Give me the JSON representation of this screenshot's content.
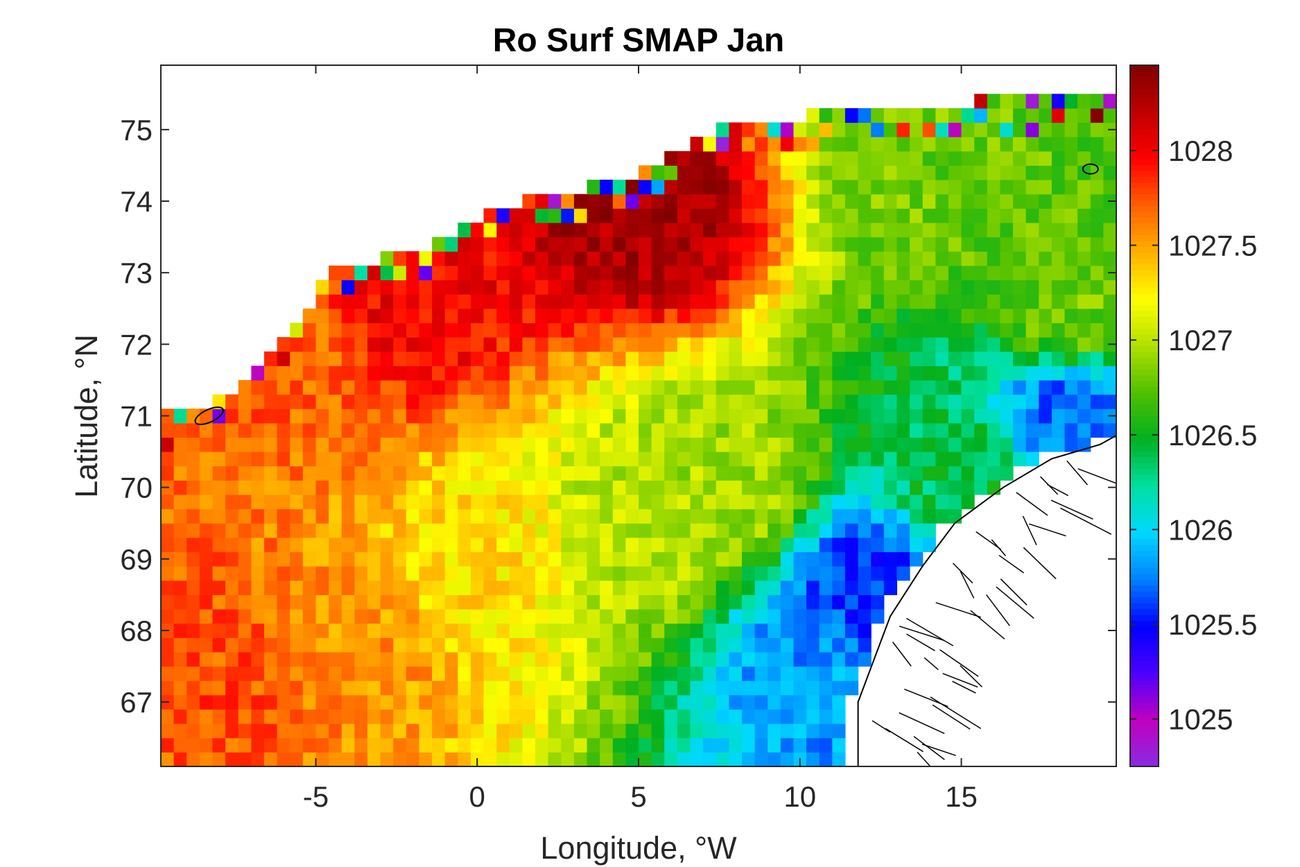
{
  "chart_data": {
    "type": "heatmap",
    "title": "Ro Surf SMAP Jan",
    "xlabel": "Longitude, °W",
    "ylabel": "Latitude, °N",
    "xlim": [
      -9.8,
      19.8
    ],
    "ylim": [
      66.1,
      75.9
    ],
    "xticks": [
      -5,
      0,
      5,
      10,
      15
    ],
    "xtick_labels": [
      "-5",
      "0",
      "5",
      "10",
      "15"
    ],
    "yticks": [
      67,
      68,
      69,
      70,
      71,
      72,
      73,
      74,
      75
    ],
    "ytick_labels": [
      "67",
      "68",
      "69",
      "70",
      "71",
      "72",
      "73",
      "74",
      "75"
    ],
    "grid": false,
    "colorbar": {
      "range": [
        1024.75,
        1028.45
      ],
      "ticks": [
        1025,
        1025.5,
        1026,
        1026.5,
        1027,
        1027.5,
        1028
      ],
      "tick_labels": [
        "1025",
        "1025.5",
        "1026",
        "1026.5",
        "1027",
        "1027.5",
        "1028"
      ],
      "colormap": [
        "#8a2be2",
        "#c000c0",
        "#4b00ff",
        "#0000ff",
        "#0080ff",
        "#00d8ff",
        "#00e0a0",
        "#00b020",
        "#50c000",
        "#b0e000",
        "#ffff00",
        "#ffb000",
        "#ff6000",
        "#ff0000",
        "#c00000",
        "#800000"
      ]
    },
    "grid_resolution": {
      "dlon": 0.4,
      "dlat": 0.2
    },
    "field_description": "Surface density (kg/m3) binned on a 0.4° x 0.2° grid; values decrease from ~1027.8 in the southwest to ~1025.5 along the Norwegian coast in the southeast; highest values (~1028.3) along the northwestern ice edge",
    "anchor_points": [
      {
        "lon": -8,
        "lat": 67.5,
        "value": 1027.75
      },
      {
        "lon": -4,
        "lat": 68.0,
        "value": 1027.55
      },
      {
        "lon": 0,
        "lat": 69.0,
        "value": 1027.3
      },
      {
        "lon": 5,
        "lat": 69.5,
        "value": 1027.0
      },
      {
        "lon": 8,
        "lat": 70.0,
        "value": 1026.95
      },
      {
        "lon": 10.5,
        "lat": 67.5,
        "value": 1025.8
      },
      {
        "lon": 12,
        "lat": 68.6,
        "value": 1025.6
      },
      {
        "lon": 15,
        "lat": 70.2,
        "value": 1026.4
      },
      {
        "lon": 18.5,
        "lat": 71.0,
        "value": 1025.7
      },
      {
        "lon": 18.5,
        "lat": 72.5,
        "value": 1026.8
      },
      {
        "lon": 14,
        "lat": 74.5,
        "value": 1026.8
      },
      {
        "lon": 5,
        "lat": 74.0,
        "value": 1028.3
      },
      {
        "lon": -2,
        "lat": 72.8,
        "value": 1028.0
      },
      {
        "lon": -6,
        "lat": 72.0,
        "value": 1027.7
      }
    ],
    "data_mask": {
      "northwest_edge_lon_lat": [
        [
          -9.8,
          71.0
        ],
        [
          -7.5,
          71.3
        ],
        [
          -6.2,
          72.0
        ],
        [
          -4.5,
          73.0
        ],
        [
          -2.0,
          73.3
        ],
        [
          0.5,
          73.9
        ],
        [
          2.5,
          74.1
        ],
        [
          5.0,
          74.4
        ],
        [
          6.0,
          74.7
        ],
        [
          8.0,
          75.1
        ],
        [
          10.0,
          75.2
        ],
        [
          11.0,
          75.3
        ],
        [
          19.8,
          75.5
        ]
      ],
      "coast_edge_lon_lat": [
        [
          11.5,
          66.1
        ],
        [
          11.5,
          67.0
        ],
        [
          12.0,
          67.6
        ],
        [
          12.5,
          68.2
        ],
        [
          13.5,
          68.9
        ],
        [
          14.5,
          69.5
        ],
        [
          16.0,
          70.0
        ],
        [
          17.5,
          70.4
        ],
        [
          19.0,
          70.6
        ],
        [
          19.8,
          70.8
        ]
      ]
    }
  }
}
